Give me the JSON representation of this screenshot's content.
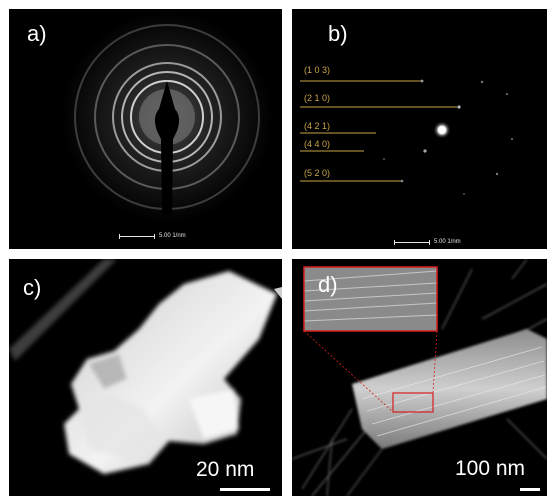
{
  "panels": {
    "a": {
      "label": "a)",
      "scale": "5.00 1/nm"
    },
    "b": {
      "label": "b)",
      "scale": "5.00 1/nm",
      "indices": [
        "(1 0 3)",
        "(2 1 0)",
        "(4 2 1)",
        "(4 4 0)",
        "(5 2 0)"
      ]
    },
    "c": {
      "label": "c)",
      "scale": "20 nm"
    },
    "d": {
      "label": "d)",
      "scale": "100 nm"
    }
  },
  "colors": {
    "index_lines": "#c9a54a",
    "zoom_box": "#d42020",
    "background": "#000000"
  }
}
